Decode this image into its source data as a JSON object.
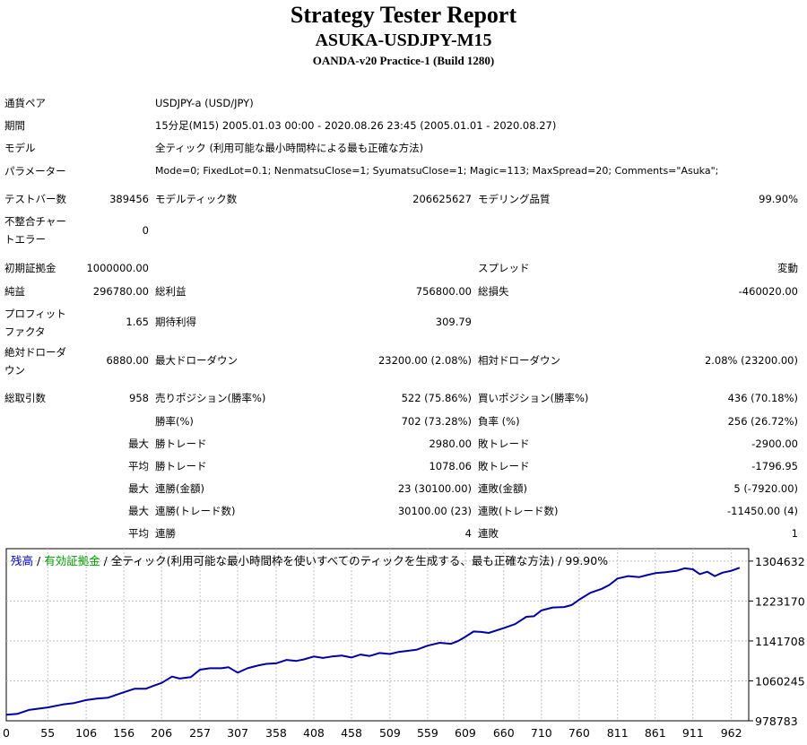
{
  "header": {
    "title": "Strategy Tester Report",
    "subtitle": "ASUKA-USDJPY-M15",
    "server": "OANDA-v20 Practice-1 (Build 1280)"
  },
  "info": {
    "symbol_label": "通貨ペア",
    "symbol_value": "USDJPY-a (USD/JPY)",
    "period_label": "期間",
    "period_value": "15分足(M15) 2005.01.03 00:00 - 2020.08.26 23:45 (2005.01.01 - 2020.08.27)",
    "model_label": "モデル",
    "model_value": "全ティック (利用可能な最小時間枠による最も正確な方法)",
    "params_label": "パラメーター",
    "params_value": "Mode=0; FixedLot=0.1; NenmatsuClose=1; SyumatsuClose=1; Magic=113; MaxSpread=20; Comments=\"Asuka\";"
  },
  "stats": {
    "bars_label": "テストバー数",
    "bars_value": "389456",
    "ticks_label": "モデルティック数",
    "ticks_value": "206625627",
    "quality_label": "モデリング品質",
    "quality_value": "99.90%",
    "mismatch_label": "不整合チャートエラー",
    "mismatch_value": "0",
    "deposit_label": "初期証拠金",
    "deposit_value": "1000000.00",
    "spread_label": "スプレッド",
    "spread_value": "変動",
    "net_label": "純益",
    "net_value": "296780.00",
    "gross_profit_label": "総利益",
    "gross_profit_value": "756800.00",
    "gross_loss_label": "総損失",
    "gross_loss_value": "-460020.00",
    "pf_label": "プロフィットファクタ",
    "pf_value": "1.65",
    "payoff_label": "期待利得",
    "payoff_value": "309.79",
    "abs_dd_label": "絶対ドローダウン",
    "abs_dd_value": "6880.00",
    "max_dd_label": "最大ドローダウン",
    "max_dd_value": "23200.00 (2.08%)",
    "rel_dd_label": "相対ドローダウン",
    "rel_dd_value": "2.08% (23200.00)",
    "trades_label": "総取引数",
    "trades_value": "958",
    "short_label": "売りポジション(勝率%)",
    "short_value": "522 (75.86%)",
    "long_label": "買いポジション(勝率%)",
    "long_value": "436 (70.18%)",
    "win_label": "勝率(%)",
    "win_value": "702 (73.28%)",
    "loss_label": "負率 (%)",
    "loss_value": "256 (26.72%)",
    "largest_label": "最大",
    "largest_win_label": "勝トレード",
    "largest_win_value": "2980.00",
    "largest_loss_label": "敗トレード",
    "largest_loss_value": "-2900.00",
    "average_label": "平均",
    "average_win_label": "勝トレード",
    "average_win_value": "1078.06",
    "average_loss_label": "敗トレード",
    "average_loss_value": "-1796.95",
    "max1_label": "最大",
    "max_consec_wins_label": "連勝(金額)",
    "max_consec_wins_value": "23 (30100.00)",
    "max_consec_losses_label": "連敗(金額)",
    "max_consec_losses_value": "5 (-7920.00)",
    "max2_label": "最大",
    "max_consec_profit_label": "連勝(トレード数)",
    "max_consec_profit_value": "30100.00 (23)",
    "max_consec_loss_label": "連敗(トレード数)",
    "max_consec_loss_value": "-11450.00 (4)",
    "avg2_label": "平均",
    "avg_consec_wins_label": "連勝",
    "avg_consec_wins_value": "4",
    "avg_consec_losses_label": "連敗",
    "avg_consec_losses_value": "1"
  },
  "legend": {
    "balance": "残高",
    "sep1": " / ",
    "equity": "有効証拠金",
    "sep2": " / ",
    "rest": "全ティック(利用可能な最小時間枠を使いすべてのティックを生成する、最も正確な方法) / 99.90%"
  },
  "colors": {
    "line": "#0000a0",
    "balance_text": "#0000c8",
    "equity_text": "#00a000",
    "grid": "#c0c0c0"
  },
  "chart_data": {
    "type": "line",
    "title": "",
    "xlabel": "",
    "ylabel": "",
    "x_ticks": [
      0,
      55,
      106,
      156,
      206,
      257,
      307,
      358,
      408,
      458,
      509,
      559,
      609,
      660,
      710,
      760,
      811,
      861,
      911,
      962
    ],
    "y_ticks": [
      978783,
      1060245,
      1141708,
      1223170,
      1304632
    ],
    "xlim": [
      0,
      985
    ],
    "ylim": [
      978783,
      1330000
    ],
    "grid": true,
    "series": [
      {
        "name": "残高",
        "x": [
          0,
          15,
          30,
          55,
          75,
          90,
          106,
          120,
          135,
          156,
          170,
          185,
          195,
          206,
          220,
          230,
          245,
          257,
          270,
          285,
          295,
          307,
          320,
          335,
          345,
          358,
          372,
          385,
          395,
          408,
          420,
          432,
          445,
          458,
          470,
          482,
          495,
          509,
          520,
          530,
          545,
          559,
          575,
          590,
          600,
          609,
          620,
          630,
          640,
          660,
          675,
          690,
          700,
          710,
          725,
          740,
          750,
          760,
          775,
          790,
          800,
          811,
          825,
          840,
          850,
          861,
          875,
          890,
          900,
          911,
          920,
          930,
          940,
          950,
          962,
          973
        ],
        "y": [
          991000,
          993000,
          1001000,
          1006000,
          1012000,
          1015000,
          1021000,
          1024000,
          1026000,
          1037000,
          1044000,
          1044000,
          1050000,
          1056000,
          1069000,
          1065000,
          1068000,
          1083000,
          1086000,
          1086000,
          1088000,
          1077000,
          1086000,
          1092000,
          1095000,
          1096000,
          1103000,
          1101000,
          1104000,
          1110000,
          1107000,
          1110000,
          1112000,
          1108000,
          1114000,
          1111000,
          1117000,
          1115000,
          1119000,
          1121000,
          1124000,
          1132000,
          1138000,
          1136000,
          1142000,
          1150000,
          1161000,
          1160000,
          1158000,
          1168000,
          1176000,
          1191000,
          1192000,
          1204000,
          1210000,
          1211000,
          1215000,
          1226000,
          1240000,
          1248000,
          1256000,
          1269000,
          1274000,
          1272000,
          1276000,
          1280000,
          1282000,
          1285000,
          1290000,
          1288000,
          1278000,
          1283000,
          1274000,
          1281000,
          1285000,
          1291000
        ]
      }
    ]
  }
}
